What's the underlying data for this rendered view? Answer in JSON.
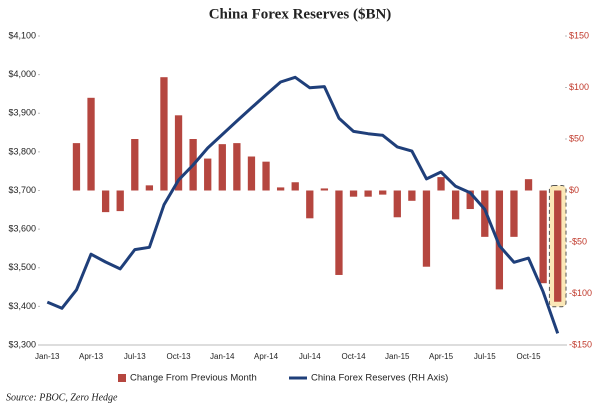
{
  "chart_data": {
    "type": "bar_line",
    "title": "China Forex Reserves ($BN)",
    "source": "Source: PBOC, Zero Hedge",
    "categories": [
      "Jan-13",
      null,
      null,
      "Apr-13",
      null,
      null,
      "Jul-13",
      null,
      null,
      "Oct-13",
      null,
      null,
      "Jan-14",
      null,
      null,
      "Apr-14",
      null,
      null,
      "Jul-14",
      null,
      null,
      "Oct-14",
      null,
      null,
      "Jan-15",
      null,
      null,
      "Apr-15",
      null,
      null,
      "Jul-15",
      null,
      null,
      "Oct-15",
      null,
      null
    ],
    "series": [
      {
        "name": "Change From Previous Month",
        "type": "bar",
        "axis": "y2",
        "color": "#b5463f",
        "values": [
          null,
          null,
          46,
          90,
          -21,
          -20,
          50,
          5,
          110,
          73,
          50,
          31,
          45,
          46,
          33,
          28,
          3,
          8,
          -27,
          2,
          -82,
          -6,
          -6,
          -4,
          -26,
          -10,
          -74,
          13,
          -28,
          -18,
          -45,
          -96,
          -45,
          11,
          -90,
          -108
        ]
      },
      {
        "name": "China Forex Reserves (RH Axis)",
        "type": "line",
        "axis": "y",
        "color": "#1f3f7a",
        "values": [
          3411,
          3395,
          3443,
          3535,
          3515,
          3497,
          3547,
          3553,
          3663,
          3727,
          3766,
          3810,
          3845,
          3880,
          3914,
          3948,
          3981,
          3993,
          3966,
          3969,
          3887,
          3853,
          3847,
          3843,
          3813,
          3802,
          3730,
          3748,
          3711,
          3694,
          3651,
          3557,
          3514,
          3525,
          3438,
          3330
        ]
      }
    ],
    "ylim": [
      3300,
      4100
    ],
    "yticks": [
      {
        "value": 3300,
        "label": "$3,300"
      },
      {
        "value": 3400,
        "label": "$3,400"
      },
      {
        "value": 3500,
        "label": "$3,500"
      },
      {
        "value": 3600,
        "label": "$3,600"
      },
      {
        "value": 3700,
        "label": "$3,700"
      },
      {
        "value": 3800,
        "label": "$3,800"
      },
      {
        "value": 3900,
        "label": "$3,900"
      },
      {
        "value": 4000,
        "label": "$4,000"
      },
      {
        "value": 4100,
        "label": "$4,100"
      }
    ],
    "y2lim": [
      -150,
      150
    ],
    "y2ticks": [
      {
        "value": -150,
        "label": "-$150"
      },
      {
        "value": -100,
        "label": "-$100"
      },
      {
        "value": -50,
        "label": "-$50"
      },
      {
        "value": 0,
        "label": "$0"
      },
      {
        "value": 50,
        "label": "$50"
      },
      {
        "value": 100,
        "label": "$100"
      },
      {
        "value": 150,
        "label": "$150"
      }
    ],
    "y2_color": "#c0392b",
    "grid": false
  }
}
